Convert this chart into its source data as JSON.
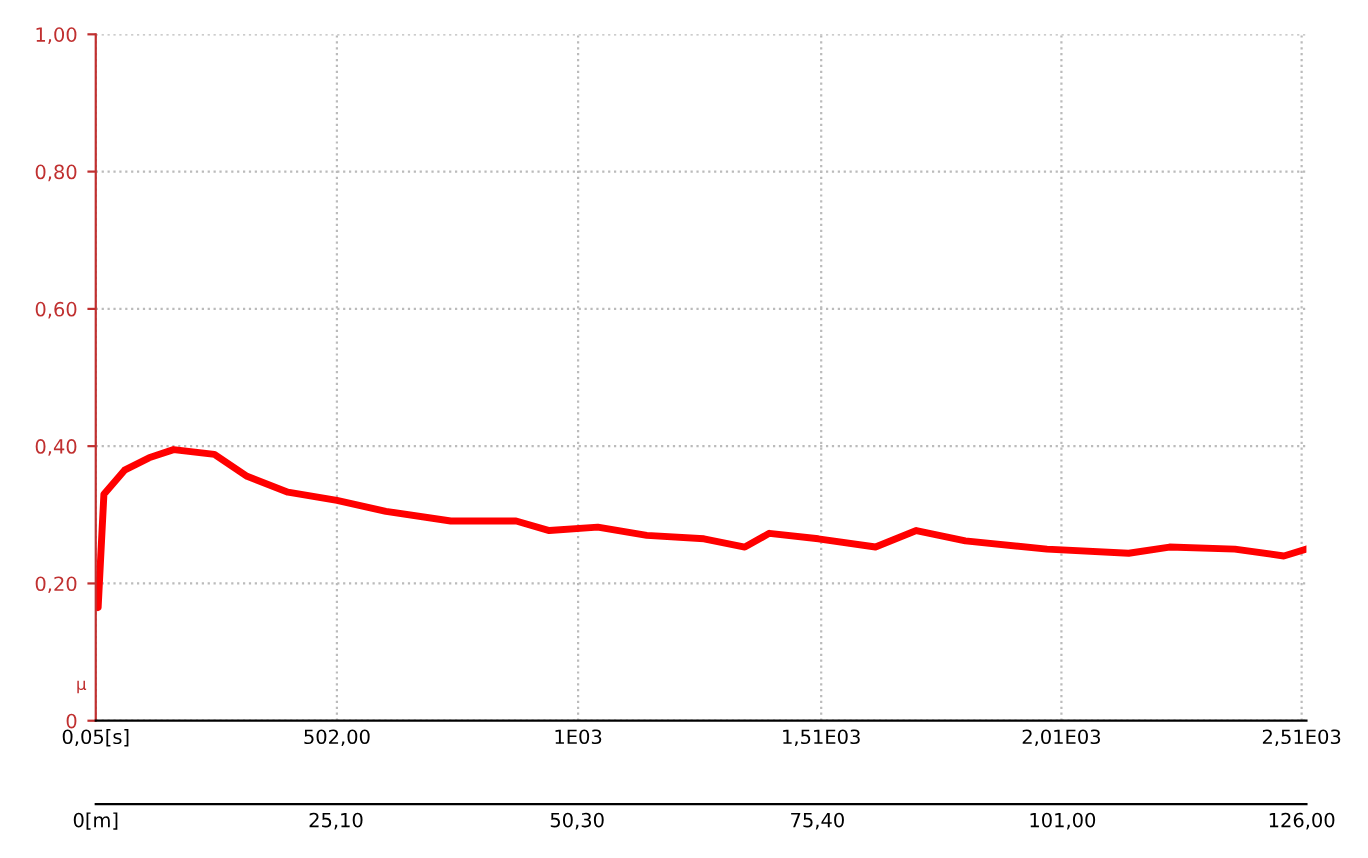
{
  "chart_data": {
    "type": "line",
    "ylabel": "μ",
    "x": [
      0.05,
      5,
      17,
      60,
      111,
      162,
      247,
      315,
      400,
      502,
      604,
      739,
      875,
      944,
      1045,
      1147,
      1266,
      1351,
      1402,
      1504,
      1623,
      1708,
      1810,
      1980,
      2150,
      2235,
      2371,
      2473,
      2520
    ],
    "series": [
      {
        "color": "#ff0000",
        "values": [
          0.17,
          0.165,
          0.33,
          0.365,
          0.383,
          0.395,
          0.388,
          0.356,
          0.333,
          0.321,
          0.305,
          0.291,
          0.291,
          0.277,
          0.282,
          0.27,
          0.265,
          0.253,
          0.273,
          0.265,
          0.253,
          0.277,
          0.262,
          0.25,
          0.244,
          0.253,
          0.25,
          0.24,
          0.25
        ]
      }
    ],
    "xlim": [
      0.05,
      2520
    ],
    "xticks": [
      {
        "value": 0.05,
        "label": "0,05[s]"
      },
      {
        "value": 502,
        "label": "502,00"
      },
      {
        "value": 1004,
        "label": "1E03"
      },
      {
        "value": 1510,
        "label": "1,51E03"
      },
      {
        "value": 2010,
        "label": "2,01E03"
      },
      {
        "value": 2510,
        "label": "2,51E03"
      }
    ],
    "x2lim": [
      0,
      126.5
    ],
    "x2ticks": [
      {
        "value": 0,
        "label": "0[m]"
      },
      {
        "value": 25.1,
        "label": "25,10"
      },
      {
        "value": 50.3,
        "label": "50,30"
      },
      {
        "value": 75.4,
        "label": "75,40"
      },
      {
        "value": 101,
        "label": "101,00"
      },
      {
        "value": 126,
        "label": "126,00"
      }
    ],
    "ylim": [
      0,
      1.0
    ],
    "yticks": [
      {
        "value": 0,
        "label": "0"
      },
      {
        "value": 0.2,
        "label": "0,20"
      },
      {
        "value": 0.4,
        "label": "0,40"
      },
      {
        "value": 0.6,
        "label": "0,60"
      },
      {
        "value": 0.8,
        "label": "0,80"
      },
      {
        "value": 1.0,
        "label": "1,00"
      }
    ],
    "grid": true,
    "line_style": "solid",
    "marker": "none"
  }
}
